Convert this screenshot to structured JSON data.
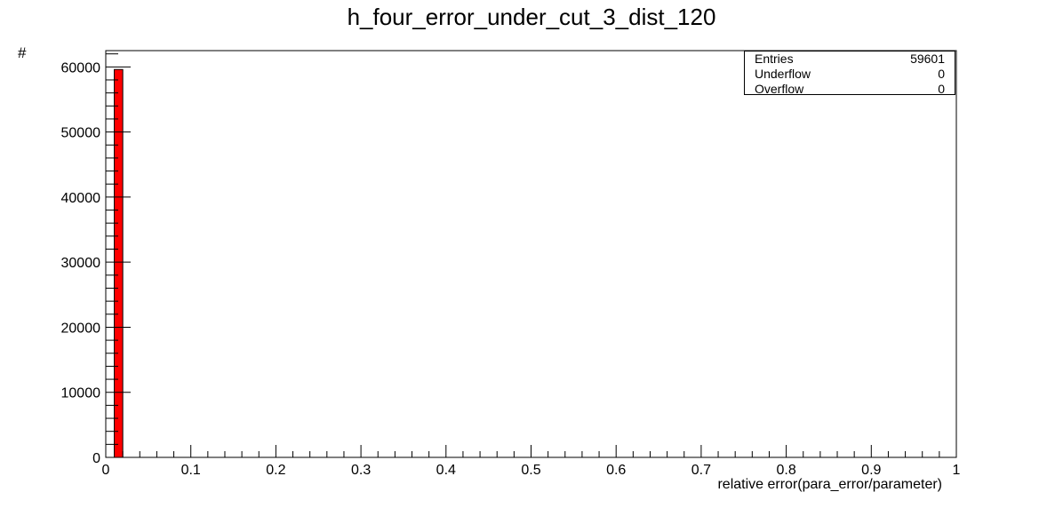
{
  "chart_data": {
    "type": "bar",
    "title": "h_four_error_under_cut_3_dist_120",
    "xlabel": "relative error(para_error/parameter)",
    "ylabel": "#",
    "xlim": [
      0,
      1
    ],
    "ylim": [
      0,
      62500
    ],
    "bin_width": 0.01,
    "x_ticks": [
      "0",
      "0.1",
      "0.2",
      "0.3",
      "0.4",
      "0.5",
      "0.6",
      "0.7",
      "0.8",
      "0.9",
      "1"
    ],
    "y_ticks": [
      "0",
      "10000",
      "20000",
      "30000",
      "40000",
      "50000",
      "60000"
    ],
    "bins": [
      {
        "x_low": 0.01,
        "x_high": 0.02,
        "value": 59601
      }
    ],
    "bar_color": "#ff0000",
    "grid": false,
    "legend": "top-right"
  },
  "stats": {
    "rows": [
      {
        "label": "Entries",
        "value": "59601"
      },
      {
        "label": "Underflow",
        "value": "0"
      },
      {
        "label": "Overflow",
        "value": "0"
      }
    ]
  }
}
